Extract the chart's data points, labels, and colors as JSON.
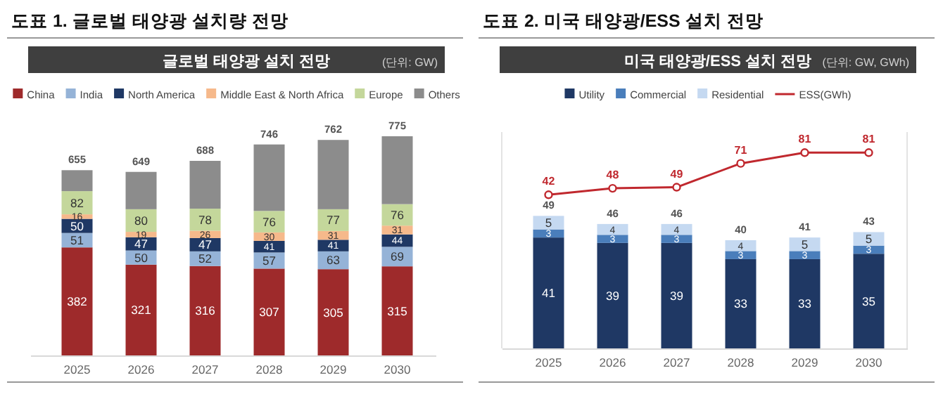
{
  "chart_data": [
    {
      "type": "bar",
      "stacked": true,
      "legend": "top",
      "title": "도표 1. 글로벌 태양광 설치량 전망",
      "subtitle": "글로벌 태양광 설치 전망",
      "annotations": [
        "(단위: GW)"
      ],
      "categories": [
        "2025",
        "2026",
        "2027",
        "2028",
        "2029",
        "2030"
      ],
      "series": [
        {
          "name": "China",
          "color": "#9e2a2b",
          "values": [
            382,
            321,
            316,
            307,
            305,
            315
          ],
          "value_labels": [
            "382",
            "321",
            "316",
            "307",
            "305",
            "315"
          ]
        },
        {
          "name": "India",
          "color": "#95b3d7",
          "values": [
            51,
            50,
            52,
            57,
            63,
            69
          ],
          "value_labels": [
            "51",
            "50",
            "52",
            "57",
            "63",
            "69"
          ]
        },
        {
          "name": "North America",
          "color": "#1f3864",
          "values": [
            50,
            47,
            47,
            41,
            41,
            44
          ],
          "value_labels": [
            "50",
            "47",
            "47",
            "41",
            "41",
            "44"
          ]
        },
        {
          "name": "Middle East & North Africa",
          "color": "#f6b98b",
          "values": [
            16,
            19,
            26,
            30,
            31,
            31
          ],
          "value_labels": [
            "16",
            "19",
            "26",
            "30",
            "31",
            "31"
          ]
        },
        {
          "name": "Europe",
          "color": "#c4d79b",
          "values": [
            82,
            80,
            78,
            76,
            77,
            76
          ],
          "value_labels": [
            "82",
            "80",
            "78",
            "76",
            "77",
            "76"
          ]
        },
        {
          "name": "Others",
          "color": "#8c8c8c",
          "values": [
            74,
            132,
            169,
            235,
            245,
            240
          ],
          "value_labels": [
            null,
            null,
            null,
            null,
            null,
            null
          ]
        }
      ],
      "totals": [
        "655",
        "649",
        "688",
        "746",
        "762",
        "775"
      ]
    },
    {
      "type": "bar",
      "stacked": true,
      "legend": "top",
      "data_labels": true,
      "marker": "circle",
      "title": "도표 2. 미국 태양광/ESS 설치 전망",
      "subtitle": "미국 태양광/ESS 설치 전망",
      "annotations": [
        "(단위: GW, GWh)"
      ],
      "categories": [
        "2025",
        "2026",
        "2027",
        "2028",
        "2029",
        "2030"
      ],
      "ylim": [
        0,
        80
      ],
      "y2lim": [
        -100,
        100
      ],
      "series": [
        {
          "name": "Utility",
          "color": "#1f3864",
          "values": [
            41,
            39,
            39,
            33,
            33,
            35
          ]
        },
        {
          "name": "Commercial",
          "color": "#4a7ebb",
          "values": [
            3,
            3,
            3,
            3,
            3,
            3
          ]
        },
        {
          "name": "Residential",
          "color": "#c5d9f1",
          "values": [
            5,
            4,
            4,
            4,
            5,
            5
          ]
        },
        {
          "name": "ESS(GWh)",
          "type": "line",
          "axis": "y2",
          "color": "#c0282e",
          "values": [
            42,
            48,
            49,
            71,
            81,
            81
          ]
        }
      ],
      "totals": [
        "49",
        "46",
        "46",
        "40",
        "41",
        "43"
      ]
    }
  ]
}
